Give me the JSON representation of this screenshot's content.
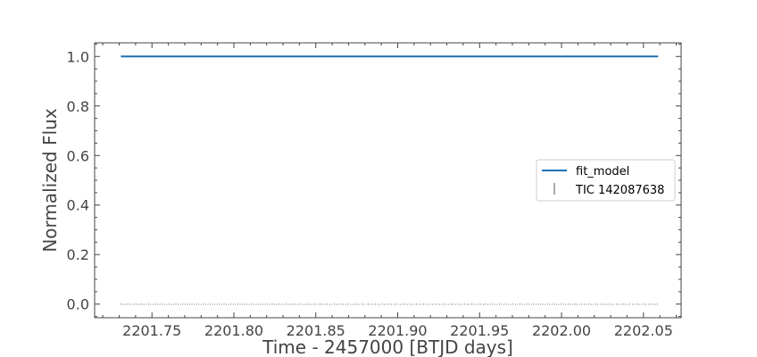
{
  "chart_data": {
    "type": "line",
    "title": "",
    "xlabel": "Time - 2457000 [BTJD days]",
    "ylabel": "Normalized Flux",
    "xlim": [
      2201.715,
      2202.073
    ],
    "ylim": [
      -0.055,
      1.055
    ],
    "x_ticks": [
      2201.75,
      2201.8,
      2201.85,
      2201.9,
      2201.95,
      2202.0,
      2202.05
    ],
    "x_tick_labels": [
      "2201.75",
      "2201.80",
      "2201.85",
      "2201.90",
      "2201.95",
      "2202.00",
      "2202.05"
    ],
    "y_ticks": [
      0.0,
      0.2,
      0.4,
      0.6,
      0.8,
      1.0
    ],
    "y_tick_labels": [
      "0.0",
      "0.2",
      "0.4",
      "0.6",
      "0.8",
      "1.0"
    ],
    "grid": false,
    "legend_position": "center-right",
    "series": [
      {
        "name": "fit_model",
        "style": "line",
        "color": "#1f6fb0",
        "x": [
          2201.731,
          2202.059
        ],
        "y": [
          1.0,
          1.0
        ]
      },
      {
        "name": "TIC 142087638",
        "style": "errorbar",
        "color": "#555555",
        "x_start": 2201.731,
        "x_end": 2202.059,
        "x_step": 0.0014,
        "y_value": 0.0
      }
    ]
  }
}
